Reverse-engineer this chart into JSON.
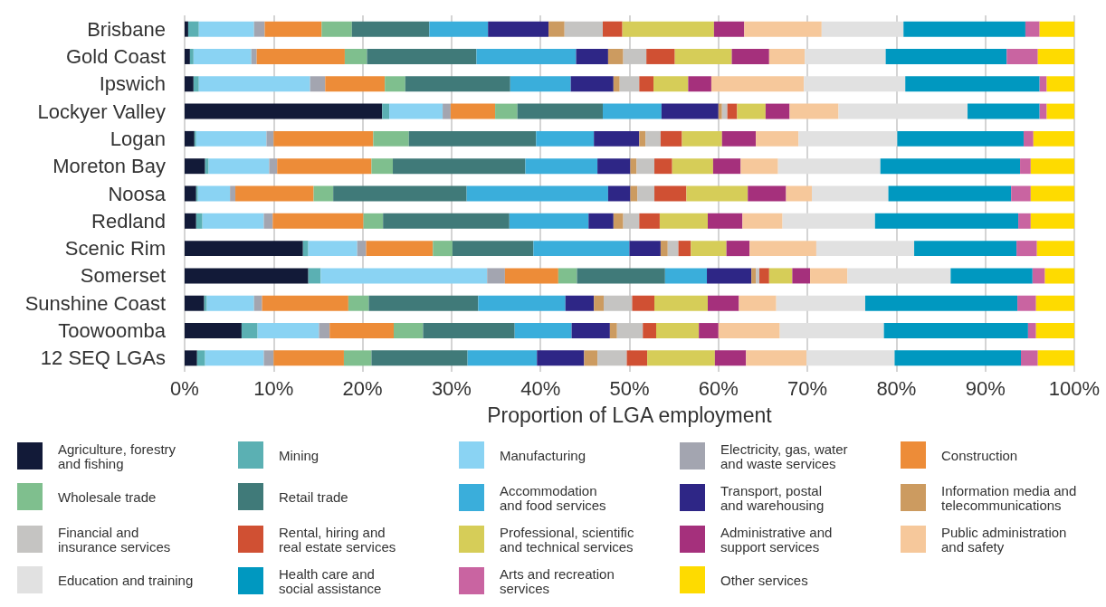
{
  "chart_data": {
    "type": "bar",
    "orientation": "horizontal",
    "stacked": true,
    "xlabel": "Proportion of LGA employment",
    "categories": [
      "Brisbane",
      "Gold Coast",
      "Ipswich",
      "Lockyer Valley",
      "Logan",
      "Moreton Bay",
      "Noosa",
      "Redland",
      "Scenic Rim",
      "Somerset",
      "Sunshine Coast",
      "Toowoomba",
      "12 SEQ LGAs"
    ],
    "series": [
      {
        "name": "Agriculture, forestry\nand fishing",
        "color": "#121a38",
        "values": [
          0.4,
          0.6,
          1.0,
          22.2,
          1.1,
          2.3,
          1.3,
          1.3,
          13.3,
          13.9,
          2.2,
          6.4,
          1.4
        ]
      },
      {
        "name": "Mining",
        "color": "#5bb0b3",
        "values": [
          1.2,
          0.4,
          0.6,
          0.8,
          0.2,
          0.4,
          0.2,
          0.7,
          0.6,
          1.4,
          0.3,
          1.8,
          0.9
        ]
      },
      {
        "name": "Manufacturing",
        "color": "#8ad3f3",
        "values": [
          6.2,
          6.5,
          12.5,
          6.0,
          7.9,
          6.8,
          3.6,
          6.9,
          5.5,
          18.7,
          5.3,
          6.9,
          6.6
        ]
      },
      {
        "name": "Electricity, gas, water\nand waste services",
        "color": "#a3a5b0",
        "values": [
          1.2,
          0.6,
          1.7,
          0.9,
          0.8,
          0.9,
          0.6,
          1.0,
          1.0,
          2.0,
          0.9,
          1.2,
          1.1
        ]
      },
      {
        "name": "Construction",
        "color": "#ed8c38",
        "values": [
          6.4,
          9.9,
          6.7,
          5.0,
          11.2,
          10.6,
          8.8,
          10.2,
          7.5,
          6.0,
          9.7,
          7.2,
          7.9
        ]
      },
      {
        "name": "Wholesale trade",
        "color": "#7fbf8e",
        "values": [
          3.4,
          2.5,
          2.3,
          2.5,
          4.0,
          2.4,
          2.2,
          2.2,
          2.2,
          2.1,
          2.3,
          3.3,
          3.1
        ]
      },
      {
        "name": "Retail trade",
        "color": "#407a79",
        "values": [
          8.7,
          12.3,
          11.8,
          9.6,
          14.3,
          14.9,
          15.0,
          14.2,
          9.1,
          9.9,
          12.3,
          10.3,
          10.8
        ]
      },
      {
        "name": "Accommodation\nand food services",
        "color": "#3aaedb",
        "values": [
          6.6,
          11.2,
          6.8,
          6.6,
          6.5,
          8.1,
          15.9,
          8.9,
          10.8,
          4.7,
          9.8,
          6.4,
          7.8
        ]
      },
      {
        "name": "Transport, postal\nand warehousing",
        "color": "#2e2686",
        "values": [
          6.8,
          3.6,
          4.8,
          6.4,
          5.1,
          3.7,
          2.5,
          2.8,
          3.5,
          5.0,
          3.2,
          4.3,
          5.3
        ]
      },
      {
        "name": "Information media and\ntelecommunications",
        "color": "#cc9b60",
        "values": [
          1.8,
          1.7,
          0.7,
          0.4,
          0.7,
          0.7,
          0.8,
          1.1,
          0.8,
          0.5,
          1.1,
          0.8,
          1.5
        ]
      },
      {
        "name": "Financial and\ninsurance services",
        "color": "#c5c4c2",
        "values": [
          4.3,
          2.6,
          2.2,
          0.6,
          1.7,
          2.0,
          1.9,
          1.8,
          1.2,
          0.4,
          3.2,
          2.9,
          3.3
        ]
      },
      {
        "name": "Rental, hiring and\nreal estate services",
        "color": "#d05033",
        "values": [
          2.2,
          3.2,
          1.6,
          1.1,
          2.4,
          2.0,
          3.6,
          2.3,
          1.4,
          1.1,
          2.5,
          1.5,
          2.3
        ]
      },
      {
        "name": "Professional, scientific\nand technical services",
        "color": "#d6cd58",
        "values": [
          10.3,
          6.4,
          3.9,
          3.2,
          4.5,
          4.6,
          6.9,
          5.4,
          4.0,
          2.6,
          6.0,
          4.8,
          7.6
        ]
      },
      {
        "name": "Administrative and\nsupport services",
        "color": "#a5307c",
        "values": [
          3.4,
          4.2,
          2.6,
          2.7,
          3.8,
          3.1,
          4.3,
          3.9,
          2.6,
          2.0,
          3.5,
          2.2,
          3.5
        ]
      },
      {
        "name": "Public administration\nand safety",
        "color": "#f6c89b",
        "values": [
          8.7,
          4.0,
          10.4,
          5.5,
          4.8,
          4.2,
          2.9,
          4.5,
          7.5,
          4.2,
          4.2,
          6.9,
          6.8
        ]
      },
      {
        "name": "Education and training",
        "color": "#e1e1e1",
        "values": [
          9.2,
          9.1,
          11.4,
          14.5,
          11.1,
          11.5,
          8.6,
          10.4,
          11.0,
          11.6,
          10.0,
          11.7,
          9.9
        ]
      },
      {
        "name": "Health care and\nsocial assistance",
        "color": "#0098c0",
        "values": [
          13.7,
          13.6,
          15.1,
          8.1,
          14.2,
          15.7,
          13.8,
          16.1,
          11.5,
          9.2,
          17.1,
          16.2,
          14.2
        ]
      },
      {
        "name": "Arts and recreation\nservices",
        "color": "#c964a1",
        "values": [
          1.6,
          3.5,
          0.8,
          0.8,
          1.1,
          1.2,
          2.2,
          1.4,
          2.3,
          1.4,
          2.1,
          0.9,
          1.9
        ]
      },
      {
        "name": "Other services",
        "color": "#fedb00",
        "values": [
          3.9,
          4.1,
          3.1,
          3.1,
          4.6,
          4.9,
          4.9,
          4.9,
          4.2,
          3.3,
          4.3,
          4.3,
          4.1
        ]
      }
    ],
    "xlim": [
      0,
      100
    ],
    "xticks": [
      {
        "value": 0,
        "label": "0%"
      },
      {
        "value": 10,
        "label": "10%"
      },
      {
        "value": 20,
        "label": "20%"
      },
      {
        "value": 30,
        "label": "30%"
      },
      {
        "value": 40,
        "label": "40%"
      },
      {
        "value": 50,
        "label": "50%"
      },
      {
        "value": 60,
        "label": "60%"
      },
      {
        "value": 70,
        "label": "70%"
      },
      {
        "value": 80,
        "label": "80%"
      },
      {
        "value": 90,
        "label": "90%"
      },
      {
        "value": 100,
        "label": "100%"
      }
    ],
    "grid": "x",
    "legend": "bottom"
  }
}
